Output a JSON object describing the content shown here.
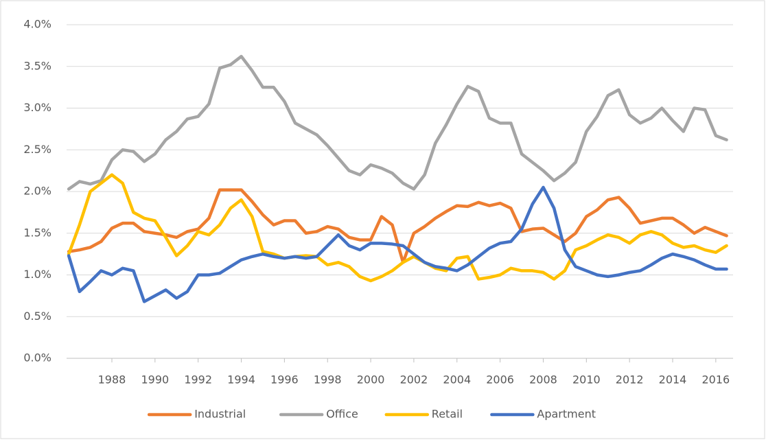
{
  "chart_data": {
    "type": "line",
    "x": [
      1986,
      1986.5,
      1987,
      1987.5,
      1988,
      1988.5,
      1989,
      1989.5,
      1990,
      1990.5,
      1991,
      1991.5,
      1992,
      1992.5,
      1993,
      1993.5,
      1994,
      1994.5,
      1995,
      1995.5,
      1996,
      1996.5,
      1997,
      1997.5,
      1998,
      1998.5,
      1999,
      1999.5,
      2000,
      2000.5,
      2001,
      2001.5,
      2002,
      2002.5,
      2003,
      2003.5,
      2004,
      2004.5,
      2005,
      2005.5,
      2006,
      2006.5,
      2007,
      2007.5,
      2008,
      2008.5,
      2009,
      2009.5,
      2010,
      2010.5,
      2011,
      2011.5,
      2012,
      2012.5,
      2013,
      2013.5,
      2014,
      2014.5,
      2015,
      2015.5,
      2016,
      2016.5
    ],
    "series": [
      {
        "name": "Industrial",
        "color": "#ED7D31",
        "values": [
          1.28,
          1.3,
          1.33,
          1.4,
          1.56,
          1.62,
          1.62,
          1.52,
          1.5,
          1.48,
          1.45,
          1.52,
          1.55,
          1.68,
          2.02,
          2.02,
          2.02,
          1.88,
          1.72,
          1.6,
          1.65,
          1.65,
          1.5,
          1.52,
          1.58,
          1.55,
          1.45,
          1.42,
          1.42,
          1.7,
          1.6,
          1.15,
          1.5,
          1.58,
          1.68,
          1.76,
          1.83,
          1.82,
          1.87,
          1.83,
          1.86,
          1.8,
          1.52,
          1.55,
          1.56,
          1.48,
          1.4,
          1.5,
          1.7,
          1.78,
          1.9,
          1.93,
          1.8,
          1.62,
          1.65,
          1.68,
          1.68,
          1.6,
          1.5,
          1.57,
          1.52,
          1.47
        ]
      },
      {
        "name": "Office",
        "color": "#A5A5A5",
        "values": [
          2.03,
          2.12,
          2.09,
          2.13,
          2.38,
          2.5,
          2.48,
          2.36,
          2.45,
          2.62,
          2.72,
          2.87,
          2.9,
          3.05,
          3.48,
          3.52,
          3.62,
          3.45,
          3.25,
          3.25,
          3.08,
          2.82,
          2.75,
          2.68,
          2.55,
          2.4,
          2.25,
          2.2,
          2.32,
          2.28,
          2.22,
          2.1,
          2.03,
          2.2,
          2.58,
          2.8,
          3.05,
          3.26,
          3.2,
          2.88,
          2.82,
          2.82,
          2.45,
          2.35,
          2.25,
          2.13,
          2.22,
          2.35,
          2.72,
          2.9,
          3.15,
          3.22,
          2.92,
          2.82,
          2.88,
          3.0,
          2.85,
          2.72,
          3.0,
          2.98,
          2.67,
          2.62
        ]
      },
      {
        "name": "Retail",
        "color": "#FFC000",
        "values": [
          1.25,
          1.6,
          2.0,
          2.1,
          2.2,
          2.1,
          1.75,
          1.68,
          1.65,
          1.45,
          1.23,
          1.35,
          1.52,
          1.48,
          1.6,
          1.8,
          1.9,
          1.7,
          1.28,
          1.25,
          1.2,
          1.22,
          1.23,
          1.22,
          1.12,
          1.15,
          1.1,
          0.98,
          0.93,
          0.98,
          1.05,
          1.15,
          1.22,
          1.15,
          1.08,
          1.05,
          1.2,
          1.22,
          0.95,
          0.97,
          1.0,
          1.08,
          1.05,
          1.05,
          1.03,
          0.95,
          1.05,
          1.3,
          1.35,
          1.42,
          1.48,
          1.45,
          1.38,
          1.48,
          1.52,
          1.48,
          1.38,
          1.33,
          1.35,
          1.3,
          1.27,
          1.35
        ]
      },
      {
        "name": "Apartment",
        "color": "#4472C4",
        "values": [
          1.23,
          0.8,
          0.92,
          1.05,
          1.0,
          1.08,
          1.05,
          0.68,
          0.75,
          0.82,
          0.72,
          0.8,
          1.0,
          1.0,
          1.02,
          1.1,
          1.18,
          1.22,
          1.25,
          1.22,
          1.2,
          1.22,
          1.2,
          1.22,
          1.35,
          1.48,
          1.35,
          1.3,
          1.38,
          1.38,
          1.37,
          1.35,
          1.25,
          1.15,
          1.1,
          1.08,
          1.05,
          1.12,
          1.22,
          1.32,
          1.38,
          1.4,
          1.55,
          1.85,
          2.05,
          1.8,
          1.3,
          1.1,
          1.05,
          1.0,
          0.98,
          1.0,
          1.03,
          1.05,
          1.12,
          1.2,
          1.25,
          1.22,
          1.18,
          1.12,
          1.07,
          1.07
        ]
      }
    ],
    "xlim": [
      1985.9,
      2016.8
    ],
    "xticks": [
      1988,
      1990,
      1992,
      1994,
      1996,
      1998,
      2000,
      2002,
      2004,
      2006,
      2008,
      2010,
      2012,
      2014,
      2016
    ],
    "ylim": [
      0,
      4
    ],
    "yticks": [
      {
        "value": 0,
        "label": "0.0%"
      },
      {
        "value": 0.5,
        "label": "0.5%"
      },
      {
        "value": 1,
        "label": "1.0%"
      },
      {
        "value": 1.5,
        "label": "1.5%"
      },
      {
        "value": 2,
        "label": "2.0%"
      },
      {
        "value": 2.5,
        "label": "2.5%"
      },
      {
        "value": 3,
        "label": "3.0%"
      },
      {
        "value": 3.5,
        "label": "3.5%"
      },
      {
        "value": 4,
        "label": "4.0%"
      }
    ],
    "grid": true,
    "legend": "bottom"
  }
}
